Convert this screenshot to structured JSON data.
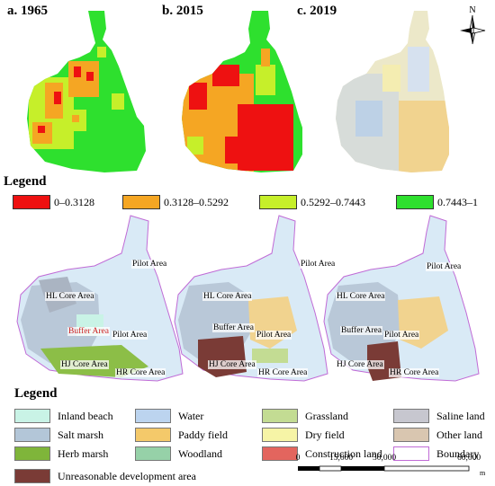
{
  "panels": [
    {
      "title": "a. 1965"
    },
    {
      "title": "b. 2015"
    },
    {
      "title": "c. 2019"
    }
  ],
  "north_label": "N",
  "legend1": {
    "heading": "Legend",
    "items": [
      {
        "label": "0–0.3128",
        "color": "#ee1111"
      },
      {
        "label": "0.3128–0.5292",
        "color": "#f5a623"
      },
      {
        "label": "0.5292–0.7443",
        "color": "#c6ef2a"
      },
      {
        "label": "0.7443–1",
        "color": "#2ee02e"
      }
    ]
  },
  "area_labels": [
    {
      "text": "Pilot Area",
      "color": "black"
    },
    {
      "text": "HL Core Area",
      "color": "black"
    },
    {
      "text": "Buffer Area",
      "color": "red"
    },
    {
      "text": "Pilot Area",
      "color": "black"
    },
    {
      "text": "HJ Core Area",
      "color": "black"
    },
    {
      "text": "HR Core Area",
      "color": "black"
    },
    {
      "text": "Pilot Area",
      "color": "black"
    },
    {
      "text": "HL Core Area",
      "color": "black"
    },
    {
      "text": "Buffer Area",
      "color": "black"
    },
    {
      "text": "Pilot Area",
      "color": "black"
    },
    {
      "text": "HJ Core Area",
      "color": "black"
    },
    {
      "text": "HR Core Area",
      "color": "black"
    },
    {
      "text": "Pilot Area",
      "color": "black"
    },
    {
      "text": "HL Core Area",
      "color": "black"
    },
    {
      "text": "Buffer Area",
      "color": "black"
    },
    {
      "text": "Pilot Area",
      "color": "black"
    },
    {
      "text": "HJ Core Area",
      "color": "black"
    },
    {
      "text": "HR Core Area",
      "color": "black"
    }
  ],
  "legend2": {
    "heading": "Legend",
    "items": [
      {
        "label": "Inland beach",
        "color": "#c9f3e6"
      },
      {
        "label": "Water",
        "color": "#bcd4ef"
      },
      {
        "label": "Grassland",
        "color": "#c3dc93"
      },
      {
        "label": "Saline land",
        "color": "#c7c7cf"
      },
      {
        "label": "Salt marsh",
        "color": "#b3c6d8"
      },
      {
        "label": "Paddy field",
        "color": "#f4c96a"
      },
      {
        "label": "Dry field",
        "color": "#f6f4a6"
      },
      {
        "label": "Other land",
        "color": "#d9c6b0"
      },
      {
        "label": "Herb marsh",
        "color": "#7fb53a"
      },
      {
        "label": "Woodland",
        "color": "#96d1a8"
      },
      {
        "label": "Construction land",
        "color": "#e3655e"
      },
      {
        "label": "Boundary",
        "color": "#ffffff"
      },
      {
        "label": "Unreasonable development area",
        "color": "#7a3b36"
      }
    ]
  },
  "scalebar": {
    "ticks": [
      "0",
      "15,000",
      "30,000",
      "60,000"
    ],
    "unit": "m"
  }
}
